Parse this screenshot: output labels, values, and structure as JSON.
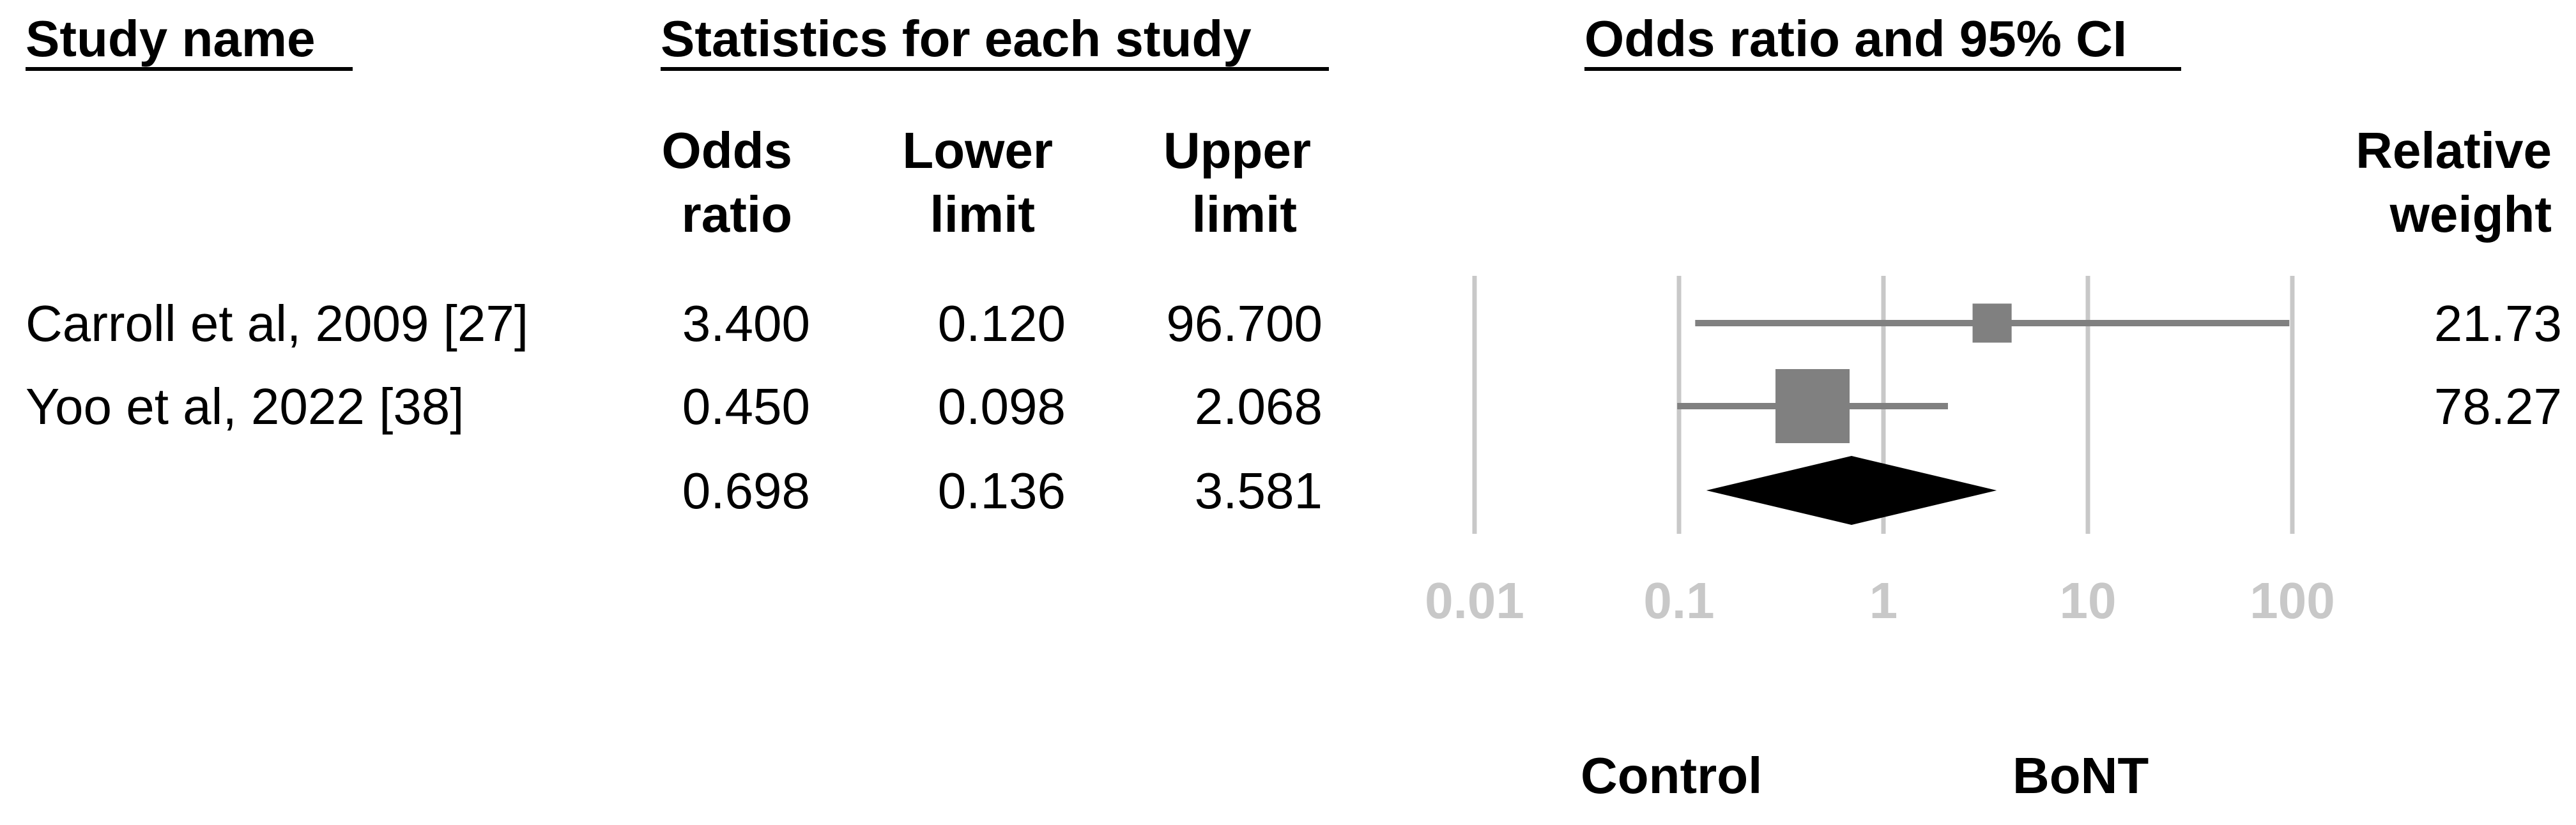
{
  "headers": {
    "study": "Study name",
    "stats": "Statistics for each study",
    "plot": "Odds ratio and 95% CI"
  },
  "columns": {
    "or": [
      "Odds",
      "ratio"
    ],
    "lower": [
      "Lower",
      "limit"
    ],
    "upper": [
      "Upper",
      "limit"
    ],
    "weight": [
      "Relative",
      "weight"
    ]
  },
  "footer": {
    "left": "Control",
    "right": "BoNT"
  },
  "colors": {
    "text": "#000000",
    "grid": "#c8c8c8",
    "tick": "#c8c8c8",
    "study_marker": "#808080",
    "summary": "#000000"
  },
  "chart_data": {
    "type": "forest",
    "x_scale": "log",
    "xlim": [
      0.01,
      100
    ],
    "ticks": [
      0.01,
      0.1,
      1,
      10,
      100
    ],
    "tick_labels": [
      "0.01",
      "0.1",
      "1",
      "10",
      "100"
    ],
    "grid": true,
    "studies": [
      {
        "name": "Carroll et al, 2009 [27]",
        "or": 3.4,
        "lower": 0.12,
        "upper": 96.7,
        "or_label": "3.400",
        "lower_label": "0.120",
        "upper_label": "96.700",
        "weight": 21.73,
        "weight_label": "21.73"
      },
      {
        "name": "Yoo et al, 2022 [38]",
        "or": 0.45,
        "lower": 0.098,
        "upper": 2.068,
        "or_label": "0.450",
        "lower_label": "0.098",
        "upper_label": "2.068",
        "weight": 78.27,
        "weight_label": "78.27"
      }
    ],
    "summary": {
      "or": 0.698,
      "lower": 0.136,
      "upper": 3.581,
      "or_label": "0.698",
      "lower_label": "0.136",
      "upper_label": "3.581"
    }
  }
}
